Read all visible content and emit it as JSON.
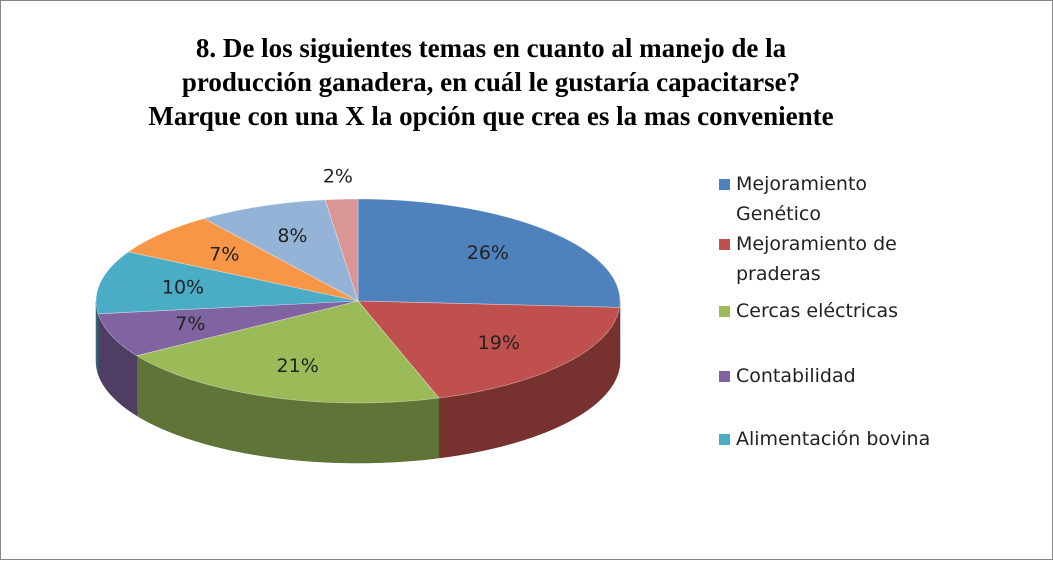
{
  "chart_data": {
    "type": "pie",
    "title": "8. De los siguientes temas en cuanto al manejo de la\nproducción ganadera, en cuál le gustaría capacitarse?\nMarque con una X la opción que crea  es la mas conveniente",
    "categories": [
      "Mejoramiento Genético",
      "Mejoramiento de praderas",
      "Cercas eléctricas",
      "Contabilidad",
      "Alimentación bovina",
      null,
      null,
      null
    ],
    "values": [
      26,
      19,
      21,
      7,
      10,
      7,
      8,
      2
    ],
    "value_labels": [
      "26%",
      "19%",
      "21%",
      "7%",
      "10%",
      "7%",
      "8%",
      "2%"
    ],
    "colors": [
      "#4f81bd",
      "#c0504d",
      "#9bbb59",
      "#8064a2",
      "#4bacc6",
      "#f79646",
      "#95b3d7",
      "#d99694"
    ],
    "legend": "right"
  }
}
